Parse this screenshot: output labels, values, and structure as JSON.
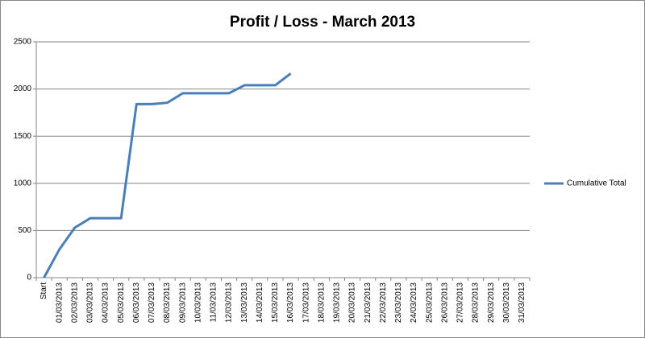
{
  "chart_data": {
    "type": "line",
    "title": "Profit / Loss - March 2013",
    "categories": [
      "Start",
      "01/03/2013",
      "02/03/2013",
      "03/03/2013",
      "04/03/2013",
      "05/03/2013",
      "06/03/2013",
      "07/03/2013",
      "08/03/2013",
      "09/03/2013",
      "10/03/2013",
      "11/03/2013",
      "12/03/2013",
      "13/03/2013",
      "14/03/2013",
      "15/03/2013",
      "16/03/2013",
      "17/03/2013",
      "18/03/2013",
      "19/03/2013",
      "20/03/2013",
      "21/03/2013",
      "22/03/2013",
      "23/03/2013",
      "24/03/2013",
      "25/03/2013",
      "26/03/2013",
      "27/03/2013",
      "28/03/2013",
      "29/03/2013",
      "30/03/2013",
      "31/03/2013"
    ],
    "series": [
      {
        "name": "Cumulative Total",
        "color": "#4a7ebb",
        "values": [
          0,
          300,
          530,
          630,
          630,
          630,
          1840,
          1840,
          1855,
          1955,
          1955,
          1955,
          1955,
          2040,
          2040,
          2040,
          2165,
          null,
          null,
          null,
          null,
          null,
          null,
          null,
          null,
          null,
          null,
          null,
          null,
          null,
          null,
          null
        ]
      }
    ],
    "ylim": [
      0,
      2500
    ],
    "yticks": [
      0,
      500,
      1000,
      1500,
      2000,
      2500
    ],
    "grid": true,
    "legend": "right"
  }
}
